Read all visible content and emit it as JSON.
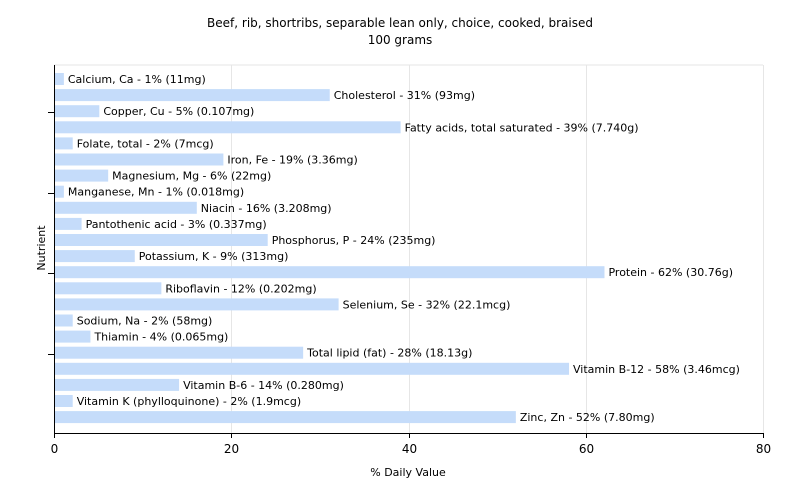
{
  "chart_data": {
    "type": "bar",
    "orientation": "horizontal",
    "title": "Beef, rib, shortribs, separable lean only, choice, cooked, braised",
    "subtitle": "100 grams",
    "xlabel": "% Daily Value",
    "ylabel": "Nutrient",
    "xlim": [
      0,
      80
    ],
    "xticks": [
      0,
      20,
      40,
      60,
      80
    ],
    "grid": true,
    "bar_color": "#c5dcfa",
    "categories": [
      "Calcium, Ca",
      "Cholesterol",
      "Copper, Cu",
      "Fatty acids, total saturated",
      "Folate, total",
      "Iron, Fe",
      "Magnesium, Mg",
      "Manganese, Mn",
      "Niacin",
      "Pantothenic acid",
      "Phosphorus, P",
      "Potassium, K",
      "Protein",
      "Riboflavin",
      "Selenium, Se",
      "Sodium, Na",
      "Thiamin",
      "Total lipid (fat)",
      "Vitamin B-12",
      "Vitamin B-6",
      "Vitamin K (phylloquinone)",
      "Zinc, Zn"
    ],
    "values": [
      1,
      31,
      5,
      39,
      2,
      19,
      6,
      1,
      16,
      3,
      24,
      9,
      62,
      12,
      32,
      2,
      4,
      28,
      58,
      14,
      2,
      52
    ],
    "labels": [
      "Calcium, Ca - 1% (11mg)",
      "Cholesterol - 31% (93mg)",
      "Copper, Cu - 5% (0.107mg)",
      "Fatty acids, total saturated - 39% (7.740g)",
      "Folate, total - 2% (7mcg)",
      "Iron, Fe - 19% (3.36mg)",
      "Magnesium, Mg - 6% (22mg)",
      "Manganese, Mn - 1% (0.018mg)",
      "Niacin - 16% (3.208mg)",
      "Pantothenic acid - 3% (0.337mg)",
      "Phosphorus, P - 24% (235mg)",
      "Potassium, K - 9% (313mg)",
      "Protein - 62% (30.76g)",
      "Riboflavin - 12% (0.202mg)",
      "Selenium, Se - 32% (22.1mcg)",
      "Sodium, Na - 2% (58mg)",
      "Thiamin - 4% (0.065mg)",
      "Total lipid (fat) - 28% (18.13g)",
      "Vitamin B-12 - 58% (3.46mcg)",
      "Vitamin B-6 - 14% (0.280mg)",
      "Vitamin K (phylloquinone) - 2% (1.9mcg)",
      "Zinc, Zn - 52% (7.80mg)"
    ]
  }
}
